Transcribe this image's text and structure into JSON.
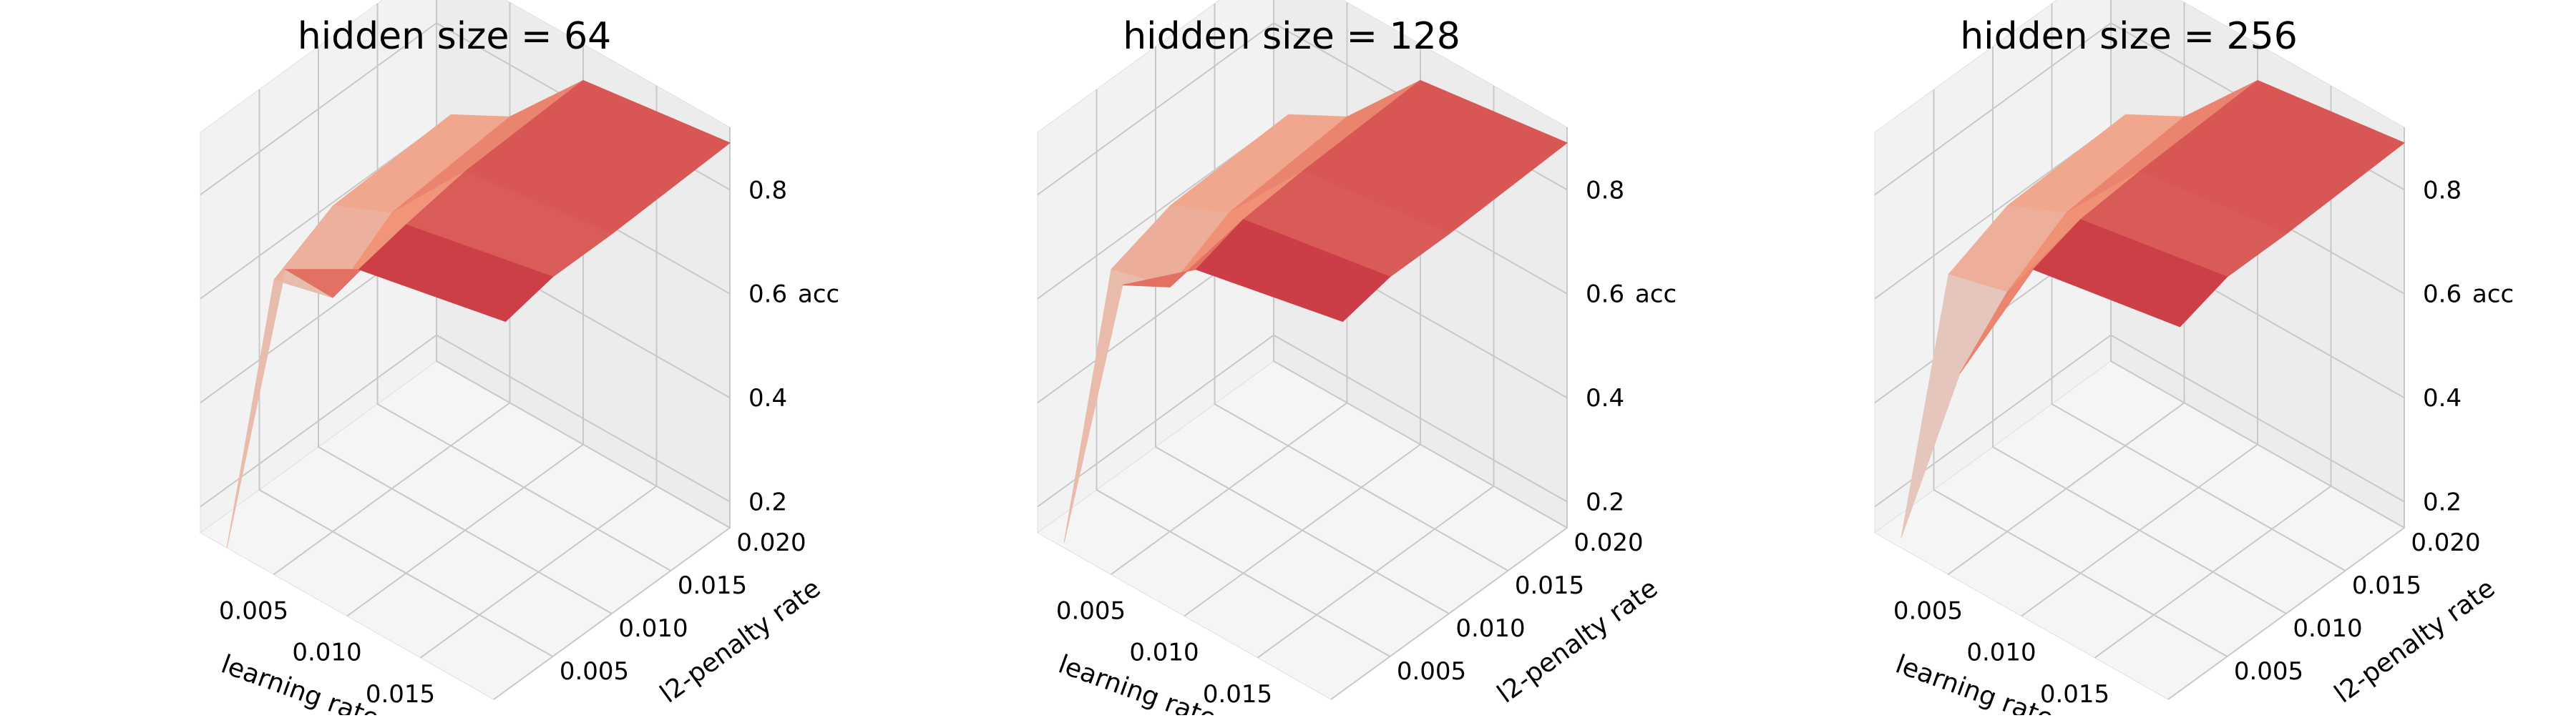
{
  "chart_data": [
    {
      "type": "surface3d",
      "title": "hidden size = 64",
      "xlabel": "learning rate",
      "ylabel": "l2-penalty rate",
      "zlabel": "acc",
      "x": [
        0.001,
        0.005,
        0.01,
        0.02
      ],
      "y": [
        0.001,
        0.005,
        0.01,
        0.02
      ],
      "xticks": [
        0.005,
        0.01,
        0.015,
        0.02
      ],
      "yticks": [
        0.005,
        0.01,
        0.015,
        0.02
      ],
      "zticks": [
        0.2,
        0.4,
        0.6,
        0.8
      ],
      "xlim": [
        0.0,
        0.02
      ],
      "ylim": [
        0.0,
        0.02
      ],
      "zlim": [
        0.15,
        0.92
      ],
      "z": [
        [
          0.12,
          0.72,
          0.8,
          0.86
        ],
        [
          0.57,
          0.6,
          0.82,
          0.88
        ],
        [
          0.63,
          0.68,
          0.84,
          0.88
        ],
        [
          0.64,
          0.7,
          0.85,
          0.89
        ]
      ],
      "colormap": "coolwarm"
    },
    {
      "type": "surface3d",
      "title": "hidden size = 128",
      "xlabel": "learning rate",
      "ylabel": "l2-penalty rate",
      "zlabel": "acc",
      "x": [
        0.001,
        0.005,
        0.01,
        0.02
      ],
      "y": [
        0.001,
        0.005,
        0.01,
        0.02
      ],
      "xticks": [
        0.005,
        0.01,
        0.015,
        0.02
      ],
      "yticks": [
        0.005,
        0.01,
        0.015,
        0.02
      ],
      "zticks": [
        0.2,
        0.4,
        0.6,
        0.8
      ],
      "xlim": [
        0.0,
        0.02
      ],
      "ylim": [
        0.0,
        0.02
      ],
      "zlim": [
        0.15,
        0.92
      ],
      "z": [
        [
          0.13,
          0.69,
          0.8,
          0.86
        ],
        [
          0.59,
          0.62,
          0.83,
          0.88
        ],
        [
          0.63,
          0.68,
          0.84,
          0.88
        ],
        [
          0.64,
          0.7,
          0.85,
          0.89
        ]
      ],
      "colormap": "coolwarm"
    },
    {
      "type": "surface3d",
      "title": "hidden size = 256",
      "xlabel": "learning rate",
      "ylabel": "l2-penalty rate",
      "zlabel": "acc",
      "x": [
        0.001,
        0.005,
        0.01,
        0.02
      ],
      "y": [
        0.001,
        0.005,
        0.01,
        0.02
      ],
      "xticks": [
        0.005,
        0.01,
        0.015,
        0.02
      ],
      "yticks": [
        0.005,
        0.01,
        0.015,
        0.02
      ],
      "zticks": [
        0.2,
        0.4,
        0.6,
        0.8
      ],
      "xlim": [
        0.0,
        0.02
      ],
      "ylim": [
        0.0,
        0.02
      ],
      "zlim": [
        0.15,
        0.92
      ],
      "z": [
        [
          0.14,
          0.52,
          0.8,
          0.85
        ],
        [
          0.58,
          0.61,
          0.83,
          0.88
        ],
        [
          0.63,
          0.68,
          0.84,
          0.88
        ],
        [
          0.64,
          0.7,
          0.85,
          0.89
        ]
      ],
      "colormap": "coolwarm"
    }
  ]
}
